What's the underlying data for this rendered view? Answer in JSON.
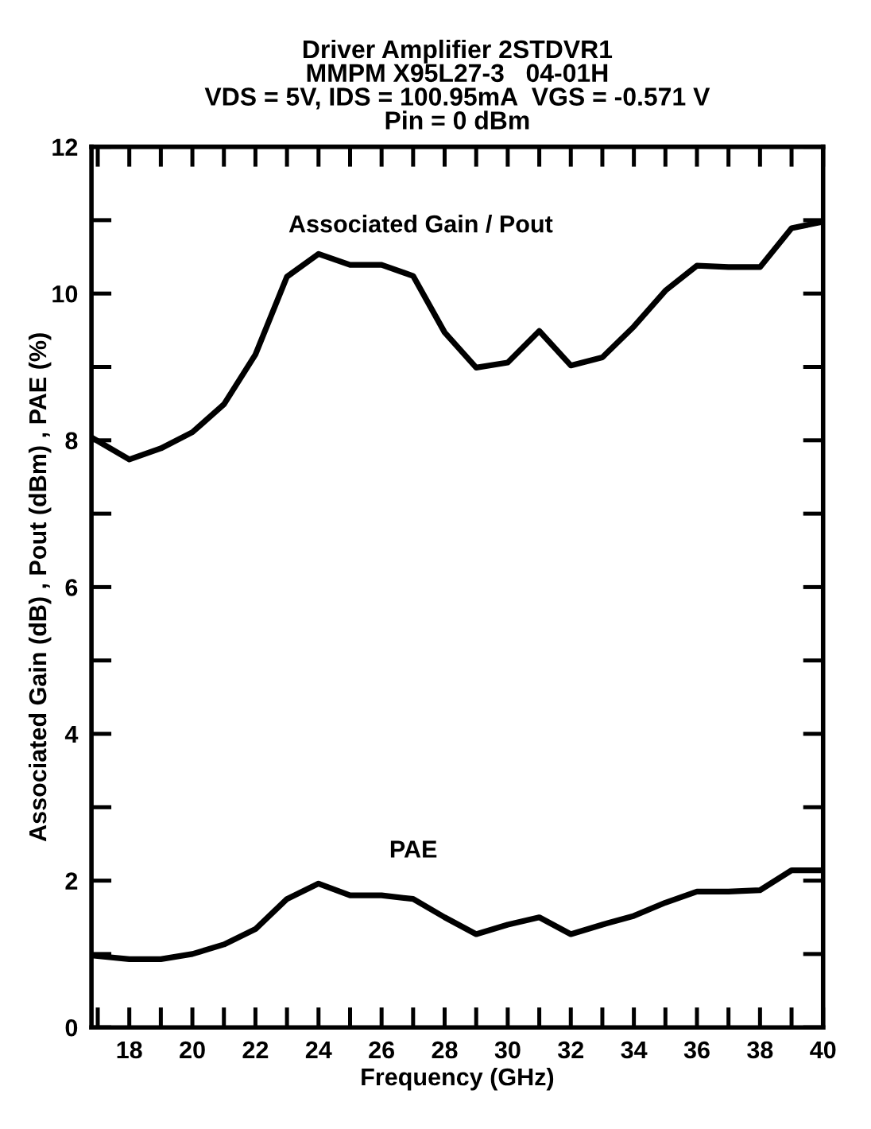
{
  "chart_data": {
    "type": "line",
    "title": "Driver Amplifier 2STDVR1\nMMPM X95L27-3   04-01H\nVDS = 5V, IDS = 100.95mA  VGS = -0.571 V\nPin = 0 dBm",
    "xlabel": "Frequency (GHz)",
    "ylabel": "Associated Gain (dB) , Pout (dBm) , PAE (%)",
    "x": [
      16.8,
      18,
      19,
      20,
      21,
      22,
      23,
      24,
      25,
      26,
      27,
      28,
      29,
      30,
      31,
      32,
      33,
      34,
      35,
      36,
      37,
      38,
      39,
      40
    ],
    "series": [
      {
        "name": "Associated Gain / Pout",
        "color": "#000000",
        "values": [
          8.04,
          7.74,
          7.89,
          8.11,
          8.49,
          9.17,
          10.23,
          10.54,
          10.39,
          10.39,
          10.24,
          9.47,
          8.99,
          9.06,
          9.49,
          9.02,
          9.13,
          9.55,
          10.04,
          10.38,
          10.36,
          10.36,
          10.89,
          10.98
        ]
      },
      {
        "name": "PAE",
        "color": "#000000",
        "values": [
          0.98,
          0.93,
          0.93,
          1.0,
          1.13,
          1.34,
          1.75,
          1.96,
          1.8,
          1.8,
          1.75,
          1.5,
          1.27,
          1.4,
          1.5,
          1.27,
          1.4,
          1.52,
          1.7,
          1.85,
          1.85,
          1.87,
          2.14,
          2.14
        ]
      }
    ],
    "xlim": [
      16.8,
      40
    ],
    "xticks": [
      {
        "value": 17,
        "label": null
      },
      18,
      {
        "value": 19,
        "label": null
      },
      20,
      {
        "value": 21,
        "label": null
      },
      22,
      {
        "value": 23,
        "label": null
      },
      24,
      {
        "value": 25,
        "label": null
      },
      26,
      {
        "value": 27,
        "label": null
      },
      28,
      {
        "value": 29,
        "label": null
      },
      30,
      {
        "value": 31,
        "label": null
      },
      32,
      {
        "value": 33,
        "label": null
      },
      34,
      {
        "value": 35,
        "label": null
      },
      36,
      {
        "value": 37,
        "label": null
      },
      38,
      {
        "value": 39,
        "label": null
      },
      40
    ],
    "ylim": [
      0,
      12
    ],
    "yticks": [
      0,
      {
        "value": 1,
        "label": null
      },
      2,
      {
        "value": 3,
        "label": null
      },
      4,
      {
        "value": 5,
        "label": null
      },
      6,
      {
        "value": 7,
        "label": null
      },
      8,
      {
        "value": 9,
        "label": null
      },
      10,
      {
        "value": 11,
        "label": null
      },
      12
    ],
    "grid": false,
    "legend": false,
    "marker": "none",
    "line_style": "solid"
  }
}
